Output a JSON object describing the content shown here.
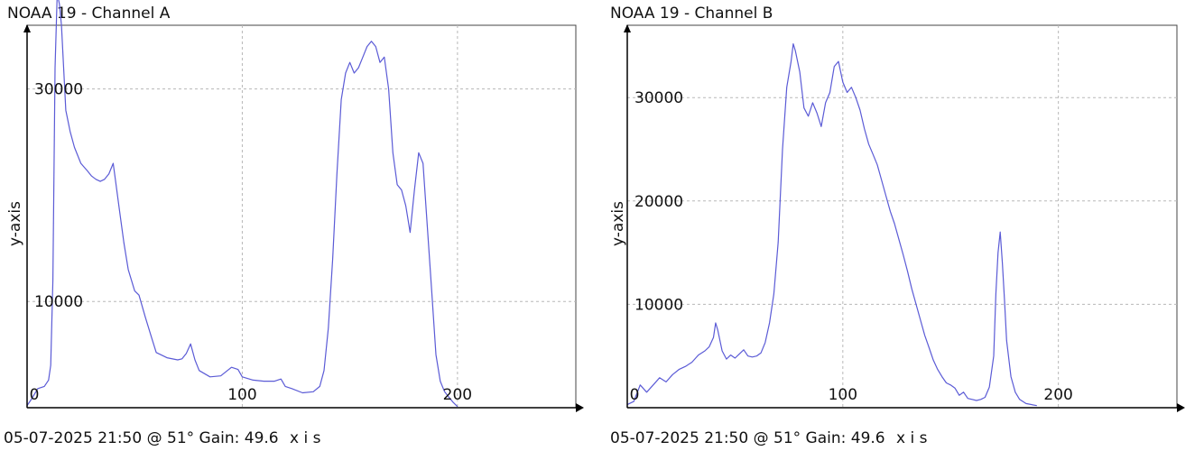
{
  "chart_data": [
    {
      "type": "line",
      "title": "NOAA 19 - Channel A",
      "xlabel": "05-07-2025 21:50 @ 51° Gain: 49.6",
      "xlabel_suffix": "x i s",
      "ylabel": "y-axis",
      "xlim": [
        0,
        255
      ],
      "ylim": [
        0,
        36000
      ],
      "x_ticks": [
        0,
        100,
        200
      ],
      "y_ticks": [
        10000,
        30000
      ],
      "grid": true,
      "series": [
        {
          "color": "#5b5bd6",
          "points": [
            [
              0,
              200
            ],
            [
              2,
              800
            ],
            [
              5,
              1800
            ],
            [
              8,
              2000
            ],
            [
              10,
              2600
            ],
            [
              11,
              4000
            ],
            [
              12,
              12000
            ],
            [
              13,
              32000
            ],
            [
              14,
              39000
            ],
            [
              15,
              38000
            ],
            [
              16,
              36000
            ],
            [
              17,
              32000
            ],
            [
              18,
              28000
            ],
            [
              20,
              26000
            ],
            [
              22,
              24500
            ],
            [
              25,
              23000
            ],
            [
              28,
              22300
            ],
            [
              30,
              21800
            ],
            [
              32,
              21500
            ],
            [
              34,
              21300
            ],
            [
              36,
              21500
            ],
            [
              38,
              22000
            ],
            [
              40,
              23000
            ],
            [
              41,
              21500
            ],
            [
              43,
              18500
            ],
            [
              45,
              15500
            ],
            [
              47,
              13000
            ],
            [
              50,
              11000
            ],
            [
              52,
              10600
            ],
            [
              55,
              8500
            ],
            [
              58,
              6500
            ],
            [
              60,
              5200
            ],
            [
              65,
              4700
            ],
            [
              70,
              4500
            ],
            [
              72,
              4600
            ],
            [
              74,
              5100
            ],
            [
              76,
              6000
            ],
            [
              78,
              4500
            ],
            [
              80,
              3500
            ],
            [
              85,
              2900
            ],
            [
              90,
              3000
            ],
            [
              95,
              3800
            ],
            [
              98,
              3600
            ],
            [
              100,
              2900
            ],
            [
              105,
              2600
            ],
            [
              110,
              2500
            ],
            [
              115,
              2500
            ],
            [
              118,
              2700
            ],
            [
              120,
              2000
            ],
            [
              123,
              1800
            ],
            [
              128,
              1400
            ],
            [
              133,
              1500
            ],
            [
              136,
              2000
            ],
            [
              138,
              3500
            ],
            [
              140,
              7500
            ],
            [
              142,
              14000
            ],
            [
              144,
              22000
            ],
            [
              146,
              29000
            ],
            [
              148,
              31500
            ],
            [
              150,
              32500
            ],
            [
              152,
              31500
            ],
            [
              154,
              32000
            ],
            [
              156,
              33000
            ],
            [
              158,
              34000
            ],
            [
              160,
              34500
            ],
            [
              162,
              34000
            ],
            [
              164,
              32500
            ],
            [
              166,
              33000
            ],
            [
              168,
              30000
            ],
            [
              170,
              24000
            ],
            [
              172,
              21000
            ],
            [
              174,
              20500
            ],
            [
              176,
              19000
            ],
            [
              178,
              16500
            ],
            [
              180,
              20500
            ],
            [
              182,
              24000
            ],
            [
              184,
              23000
            ],
            [
              186,
              17000
            ],
            [
              188,
              11000
            ],
            [
              190,
              5000
            ],
            [
              192,
              2500
            ],
            [
              194,
              1500
            ],
            [
              196,
              1000
            ],
            [
              198,
              500
            ],
            [
              200,
              100
            ]
          ]
        }
      ]
    },
    {
      "type": "line",
      "title": "NOAA 19 - Channel B",
      "xlabel": "05-07-2025 21:50 @ 51° Gain: 49.6",
      "xlabel_suffix": "x i s",
      "ylabel": "y-axis",
      "xlim": [
        0,
        255
      ],
      "ylim": [
        0,
        37000
      ],
      "x_ticks": [
        0,
        100,
        200
      ],
      "y_ticks": [
        10000,
        20000,
        30000
      ],
      "grid": true,
      "series": [
        {
          "color": "#5b5bd6",
          "points": [
            [
              0,
              300
            ],
            [
              3,
              600
            ],
            [
              6,
              2200
            ],
            [
              9,
              1500
            ],
            [
              12,
              2200
            ],
            [
              15,
              2900
            ],
            [
              18,
              2500
            ],
            [
              21,
              3200
            ],
            [
              24,
              3700
            ],
            [
              27,
              4000
            ],
            [
              30,
              4400
            ],
            [
              33,
              5100
            ],
            [
              36,
              5500
            ],
            [
              38,
              5900
            ],
            [
              40,
              6800
            ],
            [
              41,
              8200
            ],
            [
              42,
              7500
            ],
            [
              44,
              5500
            ],
            [
              46,
              4700
            ],
            [
              48,
              5100
            ],
            [
              50,
              4800
            ],
            [
              52,
              5200
            ],
            [
              54,
              5600
            ],
            [
              56,
              5000
            ],
            [
              58,
              4900
            ],
            [
              60,
              5000
            ],
            [
              62,
              5300
            ],
            [
              64,
              6300
            ],
            [
              66,
              8200
            ],
            [
              68,
              11000
            ],
            [
              70,
              16000
            ],
            [
              72,
              25000
            ],
            [
              74,
              31000
            ],
            [
              76,
              33500
            ],
            [
              77,
              35200
            ],
            [
              78,
              34500
            ],
            [
              80,
              32500
            ],
            [
              82,
              29000
            ],
            [
              84,
              28200
            ],
            [
              86,
              29500
            ],
            [
              88,
              28500
            ],
            [
              90,
              27200
            ],
            [
              92,
              29500
            ],
            [
              94,
              30500
            ],
            [
              96,
              33000
            ],
            [
              98,
              33500
            ],
            [
              100,
              31500
            ],
            [
              102,
              30500
            ],
            [
              104,
              31000
            ],
            [
              106,
              30000
            ],
            [
              108,
              28800
            ],
            [
              110,
              27000
            ],
            [
              112,
              25500
            ],
            [
              114,
              24500
            ],
            [
              116,
              23500
            ],
            [
              118,
              22000
            ],
            [
              120,
              20500
            ],
            [
              122,
              19000
            ],
            [
              124,
              17800
            ],
            [
              126,
              16300
            ],
            [
              128,
              14800
            ],
            [
              130,
              13200
            ],
            [
              132,
              11500
            ],
            [
              134,
              10000
            ],
            [
              136,
              8500
            ],
            [
              138,
              7000
            ],
            [
              140,
              5800
            ],
            [
              142,
              4600
            ],
            [
              144,
              3700
            ],
            [
              146,
              3000
            ],
            [
              148,
              2400
            ],
            [
              150,
              2200
            ],
            [
              152,
              1900
            ],
            [
              154,
              1200
            ],
            [
              156,
              1500
            ],
            [
              158,
              900
            ],
            [
              160,
              800
            ],
            [
              162,
              700
            ],
            [
              164,
              800
            ],
            [
              166,
              1000
            ],
            [
              168,
              2000
            ],
            [
              170,
              5000
            ],
            [
              171,
              11000
            ],
            [
              172,
              15000
            ],
            [
              173,
              17000
            ],
            [
              174,
              14000
            ],
            [
              175,
              10500
            ],
            [
              176,
              6500
            ],
            [
              178,
              3000
            ],
            [
              180,
              1500
            ],
            [
              182,
              800
            ],
            [
              185,
              400
            ],
            [
              190,
              200
            ]
          ]
        }
      ]
    }
  ]
}
